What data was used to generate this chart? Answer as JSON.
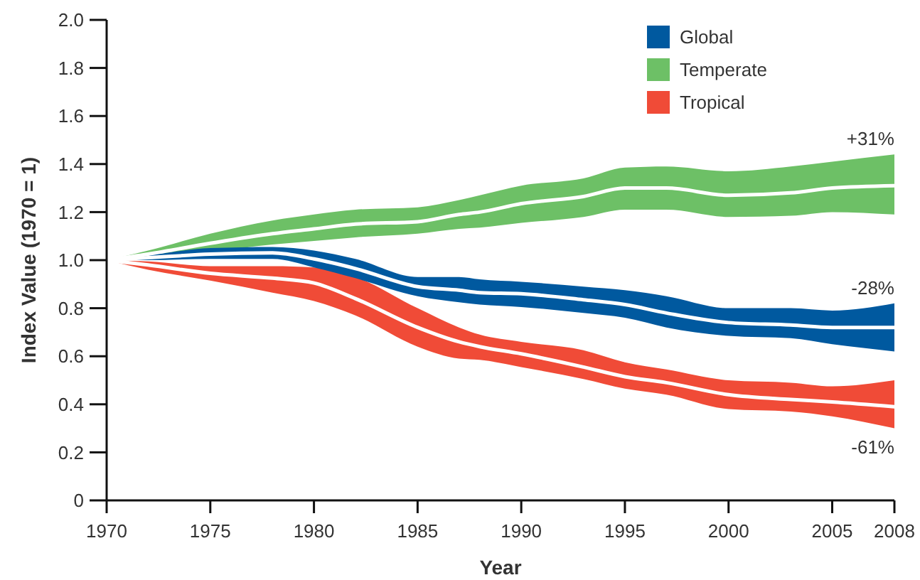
{
  "chart_data": {
    "type": "line",
    "xlabel": "Year",
    "ylabel": "Index Value (1970 = 1)",
    "x": [
      1970,
      1972,
      1975,
      1978,
      1980,
      1982,
      1985,
      1987,
      1988,
      1990,
      1993,
      1995,
      1997,
      2000,
      2003,
      2005,
      2008
    ],
    "series": [
      {
        "name": "Global",
        "color": "#00599f",
        "values": [
          null,
          null,
          null,
          null,
          null,
          null,
          null,
          null,
          null,
          null,
          null,
          null,
          null,
          null,
          null,
          null,
          null
        ],
        "lower": [
          1.0,
          1.0,
          1.005,
          1.005,
          0.97,
          0.925,
          0.85,
          0.825,
          0.815,
          0.805,
          0.78,
          0.76,
          0.72,
          0.685,
          0.675,
          0.65,
          0.62
        ],
        "upper": [
          1.0,
          1.02,
          1.05,
          1.055,
          1.04,
          1.005,
          0.93,
          0.93,
          0.92,
          0.91,
          0.89,
          0.875,
          0.85,
          0.8,
          0.8,
          0.79,
          0.82
        ]
      },
      {
        "name": "Temperate",
        "color": "#6dc066",
        "values": [
          null,
          null,
          null,
          null,
          null,
          null,
          null,
          null,
          null,
          null,
          null,
          null,
          null,
          null,
          null,
          null,
          null
        ],
        "lower": [
          1.0,
          1.01,
          1.035,
          1.065,
          1.08,
          1.095,
          1.11,
          1.13,
          1.135,
          1.155,
          1.18,
          1.21,
          1.21,
          1.18,
          1.185,
          1.2,
          1.19
        ],
        "upper": [
          1.0,
          1.04,
          1.11,
          1.165,
          1.19,
          1.21,
          1.22,
          1.25,
          1.27,
          1.31,
          1.34,
          1.385,
          1.39,
          1.37,
          1.39,
          1.41,
          1.44
        ]
      },
      {
        "name": "Tropical",
        "color": "#f04b37",
        "values": [
          null,
          null,
          null,
          null,
          null,
          null,
          null,
          null,
          null,
          null,
          null,
          null,
          null,
          null,
          null,
          null,
          null
        ],
        "lower": [
          1.0,
          0.96,
          0.915,
          0.865,
          0.83,
          0.77,
          0.64,
          0.59,
          0.585,
          0.555,
          0.505,
          0.465,
          0.44,
          0.38,
          0.37,
          0.35,
          0.3
        ],
        "upper": [
          1.0,
          0.995,
          0.975,
          0.975,
          0.97,
          0.93,
          0.8,
          0.72,
          0.69,
          0.66,
          0.625,
          0.575,
          0.545,
          0.5,
          0.49,
          0.475,
          0.5
        ]
      },
      {
        "color": "#ffffff",
        "values": [
          1.0,
          1.01,
          1.025,
          1.03,
          1.005,
          0.965,
          0.89,
          0.875,
          0.865,
          0.86,
          0.835,
          0.815,
          0.78,
          0.74,
          0.73,
          0.72,
          0.72
        ]
      },
      {
        "color": "#ffffff",
        "values": [
          1.0,
          1.025,
          1.07,
          1.11,
          1.13,
          1.15,
          1.16,
          1.19,
          1.2,
          1.235,
          1.265,
          1.3,
          1.3,
          1.27,
          1.28,
          1.3,
          1.31
        ]
      },
      {
        "color": "#ffffff",
        "values": [
          1.0,
          0.98,
          0.945,
          0.925,
          0.905,
          0.84,
          0.72,
          0.66,
          0.64,
          0.61,
          0.555,
          0.515,
          0.49,
          0.44,
          0.42,
          0.41,
          0.39
        ]
      }
    ],
    "xlim": [
      1970,
      2008
    ],
    "xticks": [
      1970,
      1975,
      1980,
      1985,
      1990,
      1995,
      2000,
      2005,
      2008
    ],
    "ylim": [
      0,
      2.0
    ],
    "yticks": [
      0,
      0.2,
      0.4,
      0.6,
      0.8,
      {
        "value": 1.0,
        "label": "1.0"
      },
      1.2,
      1.4,
      1.6,
      1.8,
      {
        "value": 2.0,
        "label": "2.0"
      }
    ],
    "annotations": [
      "+31%",
      "-28%",
      "-61%"
    ],
    "legend": "top right"
  }
}
